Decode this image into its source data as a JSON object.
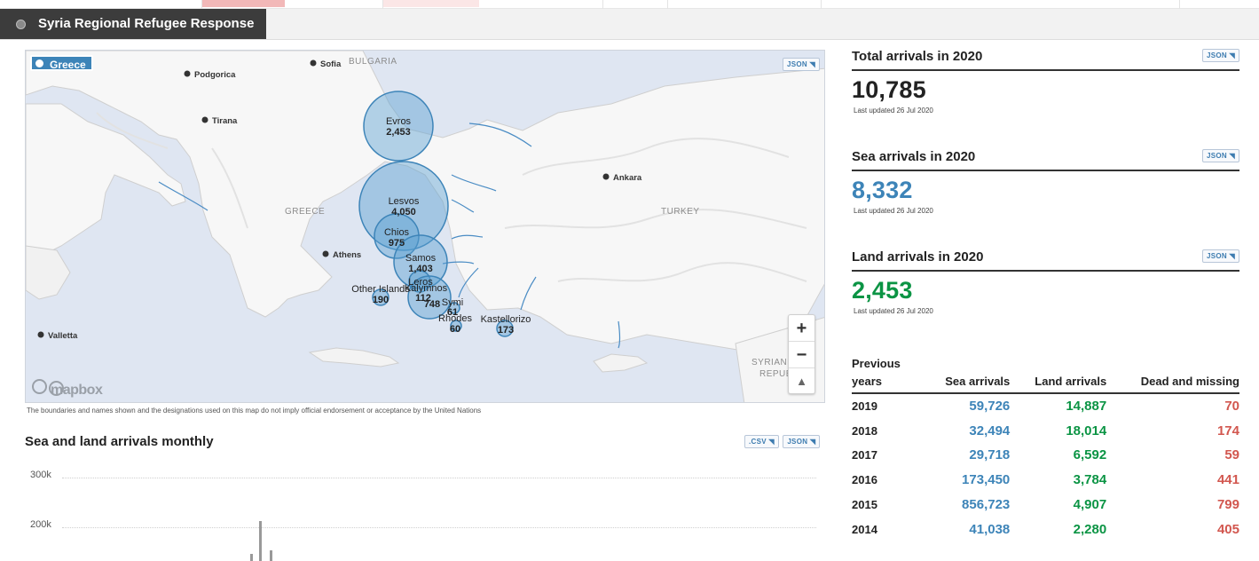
{
  "header": {
    "title": "Syria Regional Refugee Response"
  },
  "map": {
    "badge": "Greece",
    "json_label": "JSON",
    "countries": [
      "GREECE",
      "TURKEY",
      "BULGARIA",
      "SYRIAN A",
      "REPUB"
    ],
    "cities": [
      "Podgorica",
      "Sofia",
      "Tirana",
      "Ankara",
      "Athens",
      "Valletta"
    ],
    "bubbles": [
      {
        "name": "Evros",
        "value": "2,453"
      },
      {
        "name": "Lesvos",
        "value": "4,050"
      },
      {
        "name": "Chios",
        "value": "975"
      },
      {
        "name": "Samos",
        "value": "1,403"
      },
      {
        "name": "Leros",
        "value": "112"
      },
      {
        "name": "Kalymnos",
        "value": "748"
      },
      {
        "name": "Other Islands",
        "value": "190"
      },
      {
        "name": "Symi",
        "value": "61"
      },
      {
        "name": "Rhodes",
        "value": "60"
      },
      {
        "name": "Kastellorizo",
        "value": "173"
      }
    ],
    "zoom_in": "+",
    "zoom_out": "−",
    "compass": "▲",
    "attribution": "mapbox",
    "disclaimer": "The boundaries and names shown and the designations used on this map do not imply official endorsement or acceptance by the United Nations"
  },
  "monthly": {
    "title": "Sea and land arrivals monthly",
    "csv_label": ".CSV",
    "json_label": "JSON",
    "y_ticks": [
      "300k",
      "200k"
    ]
  },
  "stats": [
    {
      "title": "Total arrivals in 2020",
      "value": "10,785",
      "updated": "Last updated 26 Jul 2020",
      "json_label": "JSON",
      "color": "#222222"
    },
    {
      "title": "Sea arrivals in 2020",
      "value": "8,332",
      "updated": "Last updated 26 Jul 2020",
      "json_label": "JSON",
      "color": "#3d84b8"
    },
    {
      "title": "Land arrivals in 2020",
      "value": "2,453",
      "updated": "Last updated 26 Jul 2020",
      "json_label": "JSON",
      "color": "#0b9444"
    }
  ],
  "previous": {
    "headers": [
      "Previous years",
      "Sea arrivals",
      "Land arrivals",
      "Dead and missing"
    ],
    "rows": [
      {
        "year": "2019",
        "sea": "59,726",
        "land": "14,887",
        "dead": "70"
      },
      {
        "year": "2018",
        "sea": "32,494",
        "land": "18,014",
        "dead": "174"
      },
      {
        "year": "2017",
        "sea": "29,718",
        "land": "6,592",
        "dead": "59"
      },
      {
        "year": "2016",
        "sea": "173,450",
        "land": "3,784",
        "dead": "441"
      },
      {
        "year": "2015",
        "sea": "856,723",
        "land": "4,907",
        "dead": "799"
      },
      {
        "year": "2014",
        "sea": "41,038",
        "land": "2,280",
        "dead": "405"
      }
    ]
  }
}
